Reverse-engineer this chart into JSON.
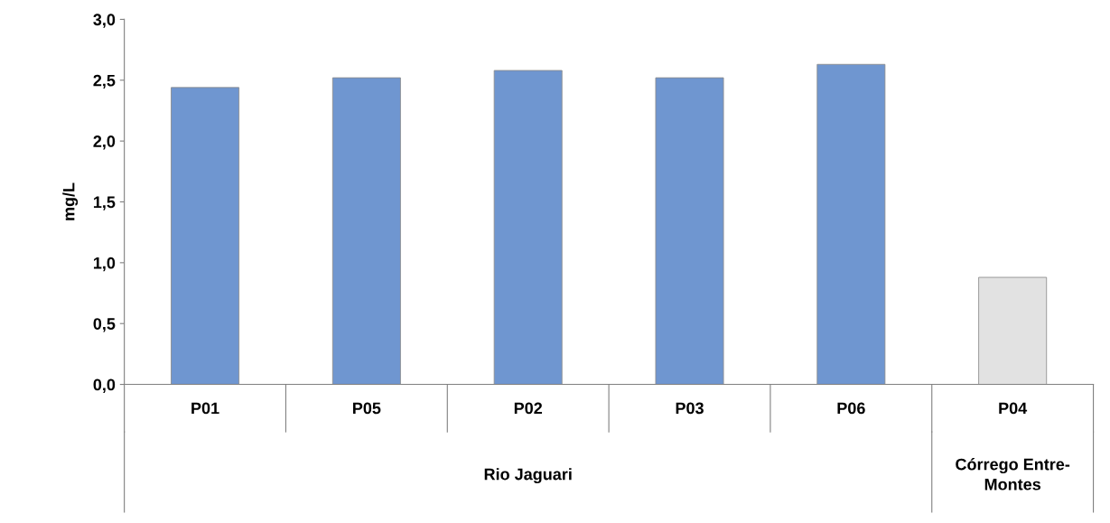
{
  "chart_data": {
    "type": "bar",
    "ylabel": "mg/L",
    "categories": [
      "P01",
      "P05",
      "P02",
      "P03",
      "P06",
      "P04"
    ],
    "values": [
      2.44,
      2.52,
      2.58,
      2.52,
      2.63,
      0.88
    ],
    "colors": [
      "#6f96d0",
      "#6f96d0",
      "#6f96d0",
      "#6f96d0",
      "#6f96d0",
      "#e2e2e2"
    ],
    "ylim": [
      0,
      3
    ],
    "yticks": [
      {
        "value": 0,
        "label": "0,0"
      },
      {
        "value": 0.5,
        "label": "0,5"
      },
      {
        "value": 1,
        "label": "1,0"
      },
      {
        "value": 1.5,
        "label": "1,5"
      },
      {
        "value": 2,
        "label": "2,0"
      },
      {
        "value": 2.5,
        "label": "2,5"
      },
      {
        "value": 3,
        "label": "3,0"
      }
    ],
    "grid": false,
    "annotations": [
      "Rio Jaguari",
      "Córrego Entre-\nMontes"
    ]
  }
}
